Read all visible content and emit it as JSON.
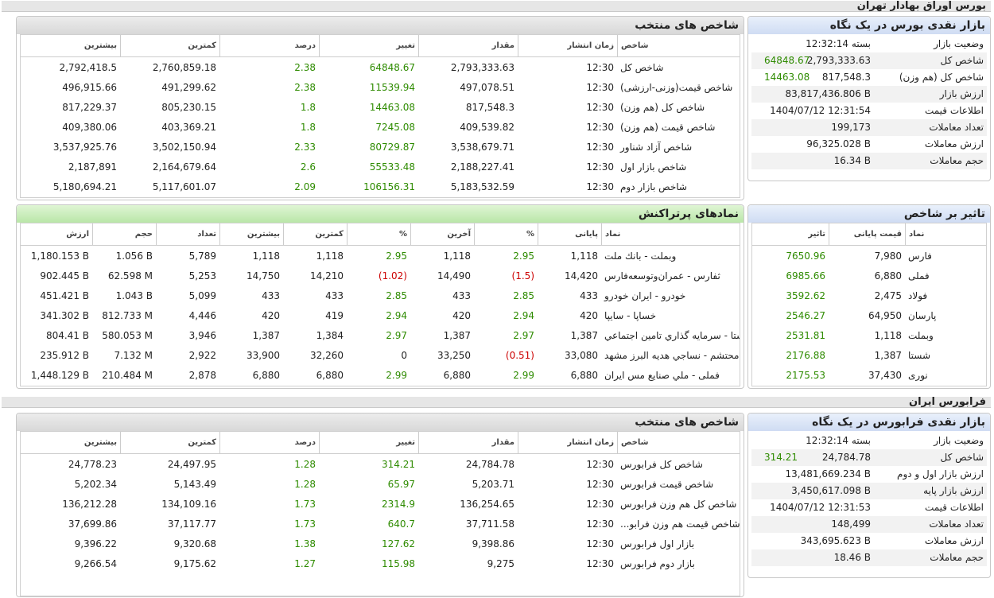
{
  "tehran": {
    "header": "بورس اوراق بهادار تهران",
    "glance": {
      "title": "بازار نقدی بورس در یک نگاه",
      "rows": [
        {
          "label": "وضعیت بازار",
          "value": "بسته 12:32:14",
          "extra": ""
        },
        {
          "label": "شاخص کل",
          "value": "2,793,333.63",
          "extra": "64848.67"
        },
        {
          "label": "شاخص کل (هم وزن)",
          "value": "817,548.3",
          "extra": "14463.08"
        },
        {
          "label": "ارزش بازار",
          "value": "83,817,436.806 B",
          "extra": ""
        },
        {
          "label": "اطلاعات قیمت",
          "value": "1404/07/12 12:31:54",
          "extra": ""
        },
        {
          "label": "تعداد معاملات",
          "value": "199,173",
          "extra": ""
        },
        {
          "label": "ارزش معاملات",
          "value": "96,325.028 B",
          "extra": ""
        },
        {
          "label": "حجم معاملات",
          "value": "16.34 B",
          "extra": ""
        }
      ]
    },
    "indices": {
      "title": "شاخص های منتخب",
      "headers": [
        "شاخص",
        "زمان انتشار",
        "مقدار",
        "تغییر",
        "درصد",
        "کمترین",
        "بیشترین"
      ],
      "rows": [
        [
          "شاخص کل",
          "12:30",
          "2,793,333.63",
          "64848.67",
          "2.38",
          "2,760,859.18",
          "2,792,418.5"
        ],
        [
          "شاخص قیمت(وزنی-ارزشی)",
          "12:30",
          "497,078.51",
          "11539.94",
          "2.38",
          "491,299.62",
          "496,915.66"
        ],
        [
          "شاخص کل (هم وزن)",
          "12:30",
          "817,548.3",
          "14463.08",
          "1.8",
          "805,230.15",
          "817,229.37"
        ],
        [
          "شاخص قیمت (هم وزن)",
          "12:30",
          "409,539.82",
          "7245.08",
          "1.8",
          "403,369.21",
          "409,380.06"
        ],
        [
          "شاخص آزاد شناور",
          "12:30",
          "3,538,679.71",
          "80729.87",
          "2.33",
          "3,502,150.94",
          "3,537,925.76"
        ],
        [
          "شاخص بازار اول",
          "12:30",
          "2,188,227.41",
          "55533.48",
          "2.6",
          "2,164,679.64",
          "2,187,891"
        ],
        [
          "شاخص بازار دوم",
          "12:30",
          "5,183,532.59",
          "106156.31",
          "2.09",
          "5,117,601.07",
          "5,180,694.21"
        ]
      ]
    },
    "impact": {
      "title": "تاثیر بر شاخص",
      "headers": [
        "نماد",
        "قیمت پایانی",
        "تاثیر"
      ],
      "rows": [
        [
          "فارس",
          "7,980",
          "7650.96"
        ],
        [
          "فملی",
          "6,880",
          "6985.66"
        ],
        [
          "فولاد",
          "2,475",
          "3592.62"
        ],
        [
          "پارسان",
          "64,950",
          "2546.27"
        ],
        [
          "وبملت",
          "1,118",
          "2531.81"
        ],
        [
          "شستا",
          "1,387",
          "2176.88"
        ],
        [
          "نوری",
          "37,430",
          "2175.53"
        ]
      ]
    },
    "active": {
      "title": "نمادهای پرتراکنش",
      "headers": [
        "نماد",
        "پایانی",
        "%",
        "آخرین",
        "%",
        "کمترین",
        "بیشترین",
        "تعداد",
        "حجم",
        "ارزش"
      ],
      "rows": [
        [
          "وبملت - بانك ملت",
          "1,118",
          "2.95",
          "1,118",
          "2.95",
          "1,118",
          "1,118",
          "5,789",
          "1.056 B",
          "1,180.153 B"
        ],
        [
          "ثفارس - عمران‌وتوسعه‌فارس",
          "14,420",
          "(1.5)",
          "14,490",
          "(1.02)",
          "14,210",
          "14,750",
          "5,253",
          "62.598 M",
          "902.445 B"
        ],
        [
          "خودرو - ايران‌ خودرو",
          "433",
          "2.85",
          "433",
          "2.85",
          "433",
          "433",
          "5,099",
          "1.043 B",
          "451.421 B"
        ],
        [
          "خساپا - سايپا",
          "420",
          "2.94",
          "420",
          "2.94",
          "419",
          "420",
          "4,446",
          "812.733 M",
          "341.302 B"
        ],
        [
          "شستا - سرمايه گذاري تامين اجتماعي",
          "1,387",
          "2.97",
          "1,387",
          "2.97",
          "1,384",
          "1,387",
          "3,946",
          "580.053 M",
          "804.41 B"
        ],
        [
          "محتشم - نساجي هديه البرز مشهد",
          "33,080",
          "(0.51)",
          "33,250",
          "0",
          "32,260",
          "33,900",
          "2,922",
          "7.132 M",
          "235.912 B"
        ],
        [
          "فملی - ملي صنايع مس ايران",
          "6,880",
          "2.99",
          "6,880",
          "2.99",
          "6,880",
          "6,880",
          "2,878",
          "210.484 M",
          "1,448.129 B"
        ]
      ]
    }
  },
  "farabourse": {
    "header": "فرابورس ایران",
    "glance": {
      "title": "بازار نقدی فرابورس در یک نگاه",
      "rows": [
        {
          "label": "وضعیت بازار",
          "value": "بسته 12:32:14",
          "extra": ""
        },
        {
          "label": "شاخص کل",
          "value": "24,784.78",
          "extra": "314.21"
        },
        {
          "label": "ارزش بازار اول و دوم",
          "value": "13,481,669.234 B",
          "extra": ""
        },
        {
          "label": "ارزش بازار پایه",
          "value": "3,450,617.098 B",
          "extra": ""
        },
        {
          "label": "اطلاعات قیمت",
          "value": "1404/07/12 12:31:53",
          "extra": ""
        },
        {
          "label": "تعداد معاملات",
          "value": "148,499",
          "extra": ""
        },
        {
          "label": "ارزش معاملات",
          "value": "343,695.623 B",
          "extra": ""
        },
        {
          "label": "حجم معاملات",
          "value": "18.46 B",
          "extra": ""
        }
      ]
    },
    "indices": {
      "title": "شاخص های منتخب",
      "headers": [
        "شاخص",
        "زمان انتشار",
        "مقدار",
        "تغییر",
        "درصد",
        "کمترین",
        "بیشترین"
      ],
      "rows": [
        [
          "شاخص کل فرابورس",
          "12:30",
          "24,784.78",
          "314.21",
          "1.28",
          "24,497.95",
          "24,778.23"
        ],
        [
          "شاخص قیمت فرابورس",
          "12:30",
          "5,203.71",
          "65.97",
          "1.28",
          "5,143.49",
          "5,202.34"
        ],
        [
          "شاخص کل هم وزن فرابورس",
          "12:30",
          "136,254.65",
          "2314.9",
          "1.73",
          "134,109.16",
          "136,212.28"
        ],
        [
          "شاخص قیمت هم وزن فرابو...",
          "12:30",
          "37,711.58",
          "640.7",
          "1.73",
          "37,117.77",
          "37,699.86"
        ],
        [
          "بازار اول فرابورس",
          "12:30",
          "9,398.86",
          "127.62",
          "1.38",
          "9,320.68",
          "9,396.22"
        ],
        [
          "بازار دوم فرابورس",
          "12:30",
          "9,275",
          "115.98",
          "1.27",
          "9,175.62",
          "9,266.54"
        ]
      ]
    }
  },
  "colors": {
    "positive": "#2e8b00",
    "negative": "#cc0000"
  }
}
